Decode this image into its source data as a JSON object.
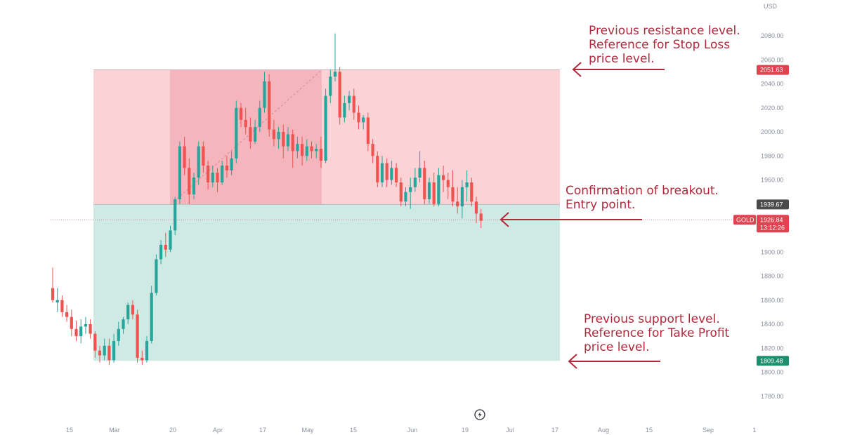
{
  "chart_data": {
    "type": "candlestick",
    "symbol": "GOLD",
    "currency_label": "USD",
    "ylim": [
      1770,
      2090
    ],
    "y_ticks": [
      1780,
      1800,
      1820,
      1840,
      1860,
      1880,
      1900,
      1920,
      1940,
      1960,
      1980,
      2000,
      2020,
      2040,
      2060,
      2080
    ],
    "x_ticks": [
      "15",
      "Mar",
      "20",
      "Apr",
      "17",
      "May",
      "15",
      "Jun",
      "19",
      "Jul",
      "17",
      "Aug",
      "15",
      "Sep",
      "1"
    ],
    "levels": {
      "resistance": 2051.63,
      "entry": 1939.67,
      "support": 1809.48,
      "current": 1926.84
    },
    "badges": {
      "resistance": "2051.63",
      "entry": "1939.67",
      "support": "1809.48",
      "current_price": "1926.84",
      "countdown": "13:12:26"
    },
    "candles": [
      [
        1870,
        1887,
        1860,
        1858
      ],
      [
        1858,
        1870,
        1860,
        1850
      ],
      [
        1860,
        1864,
        1850,
        1846
      ],
      [
        1850,
        1856,
        1846,
        1842
      ],
      [
        1846,
        1852,
        1836,
        1830
      ],
      [
        1836,
        1843,
        1830,
        1826
      ],
      [
        1830,
        1844,
        1838,
        1824
      ],
      [
        1838,
        1846,
        1840,
        1832
      ],
      [
        1840,
        1844,
        1832,
        1828
      ],
      [
        1832,
        1834,
        1818,
        1812
      ],
      [
        1818,
        1822,
        1814,
        1808
      ],
      [
        1814,
        1828,
        1822,
        1810
      ],
      [
        1822,
        1828,
        1810,
        1806
      ],
      [
        1810,
        1832,
        1826,
        1808
      ],
      [
        1826,
        1842,
        1836,
        1822
      ],
      [
        1836,
        1846,
        1844,
        1832
      ],
      [
        1844,
        1858,
        1856,
        1840
      ],
      [
        1856,
        1860,
        1848,
        1844
      ],
      [
        1848,
        1852,
        1812,
        1808
      ],
      [
        1812,
        1818,
        1810,
        1806
      ],
      [
        1810,
        1830,
        1826,
        1808
      ],
      [
        1826,
        1872,
        1866,
        1824
      ],
      [
        1866,
        1898,
        1894,
        1864
      ],
      [
        1894,
        1910,
        1906,
        1890
      ],
      [
        1906,
        1916,
        1902,
        1896
      ],
      [
        1902,
        1922,
        1918,
        1900
      ],
      [
        1918,
        1946,
        1944,
        1914
      ],
      [
        1944,
        1992,
        1988,
        1940
      ],
      [
        1988,
        1996,
        1970,
        1964
      ],
      [
        1970,
        1978,
        1948,
        1940
      ],
      [
        1948,
        1966,
        1962,
        1944
      ],
      [
        1962,
        1992,
        1988,
        1956
      ],
      [
        1988,
        1992,
        1972,
        1966
      ],
      [
        1972,
        1976,
        1958,
        1952
      ],
      [
        1958,
        1972,
        1966,
        1954
      ],
      [
        1966,
        1970,
        1958,
        1950
      ],
      [
        1958,
        1976,
        1972,
        1956
      ],
      [
        1972,
        1980,
        1968,
        1962
      ],
      [
        1968,
        1984,
        1978,
        1964
      ],
      [
        1978,
        2026,
        2020,
        1974
      ],
      [
        2020,
        2024,
        2010,
        2004
      ],
      [
        2010,
        2020,
        2004,
        1998
      ],
      [
        2004,
        2012,
        1992,
        1986
      ],
      [
        1992,
        2010,
        2004,
        1990
      ],
      [
        2004,
        2026,
        2020,
        2000
      ],
      [
        2020,
        2050,
        2042,
        2016
      ],
      [
        2042,
        2048,
        2002,
        1996
      ],
      [
        2002,
        2010,
        1994,
        1988
      ],
      [
        1994,
        2004,
        2000,
        1986
      ],
      [
        2000,
        2006,
        1988,
        1978
      ],
      [
        1988,
        2004,
        1998,
        1984
      ],
      [
        1998,
        2002,
        1984,
        1970
      ],
      [
        1984,
        1996,
        1990,
        1978
      ],
      [
        1990,
        1996,
        1980,
        1972
      ],
      [
        1980,
        1994,
        1988,
        1976
      ],
      [
        1988,
        1992,
        1984,
        1978
      ],
      [
        1984,
        1990,
        1986,
        1978
      ],
      [
        1986,
        1996,
        1976,
        1970
      ],
      [
        1976,
        2036,
        2030,
        1974
      ],
      [
        2030,
        2052,
        2046,
        2024
      ],
      [
        2046,
        2082,
        2050,
        2042
      ],
      [
        2050,
        2054,
        2012,
        2006
      ],
      [
        2012,
        2030,
        2024,
        2008
      ],
      [
        2024,
        2034,
        2030,
        2018
      ],
      [
        2030,
        2036,
        2016,
        2010
      ],
      [
        2016,
        2022,
        2008,
        2002
      ],
      [
        2008,
        2014,
        2012,
        2002
      ],
      [
        2012,
        2016,
        1990,
        1984
      ],
      [
        1990,
        1994,
        1980,
        1974
      ],
      [
        1980,
        1984,
        1958,
        1954
      ],
      [
        1958,
        1980,
        1974,
        1954
      ],
      [
        1974,
        1978,
        1960,
        1954
      ],
      [
        1960,
        1976,
        1970,
        1956
      ],
      [
        1970,
        1974,
        1958,
        1954
      ],
      [
        1958,
        1962,
        1942,
        1938
      ],
      [
        1942,
        1954,
        1950,
        1938
      ],
      [
        1950,
        1962,
        1954,
        1936
      ],
      [
        1954,
        1970,
        1962,
        1950
      ],
      [
        1962,
        1984,
        1970,
        1958
      ],
      [
        1970,
        1976,
        1944,
        1940
      ],
      [
        1944,
        1962,
        1958,
        1940
      ],
      [
        1958,
        1966,
        1940,
        1938
      ],
      [
        1940,
        1970,
        1964,
        1938
      ],
      [
        1964,
        1972,
        1960,
        1950
      ],
      [
        1960,
        1966,
        1954,
        1944
      ],
      [
        1954,
        1968,
        1942,
        1938
      ],
      [
        1942,
        1954,
        1938,
        1932
      ],
      [
        1938,
        1960,
        1954,
        1928
      ],
      [
        1954,
        1968,
        1958,
        1942
      ],
      [
        1958,
        1962,
        1942,
        1938
      ],
      [
        1942,
        1946,
        1932,
        1924
      ],
      [
        1932,
        1936,
        1926,
        1920
      ]
    ],
    "annotations": [
      {
        "lines": [
          "Previous resistance level.",
          "Reference for Stop Loss",
          "price level."
        ]
      },
      {
        "lines": [
          "Confirmation of breakout.",
          "Entry point."
        ]
      },
      {
        "lines": [
          "Previous support level.",
          "Reference for Take Profit",
          "price level."
        ]
      }
    ],
    "colors": {
      "up": "#26a69a",
      "down": "#ef5350",
      "stop_zone": "#fbd3d7",
      "stop_zone_dark": "#f5b5bc",
      "profit_zone": "#cfe9e4",
      "annotation": "#b02a3c",
      "badge_red": "#e0424f",
      "badge_dark": "#4a4a4a",
      "badge_green": "#1e8f6e",
      "axis_text": "#8a8f9c"
    },
    "grid": false,
    "legend": "none"
  }
}
